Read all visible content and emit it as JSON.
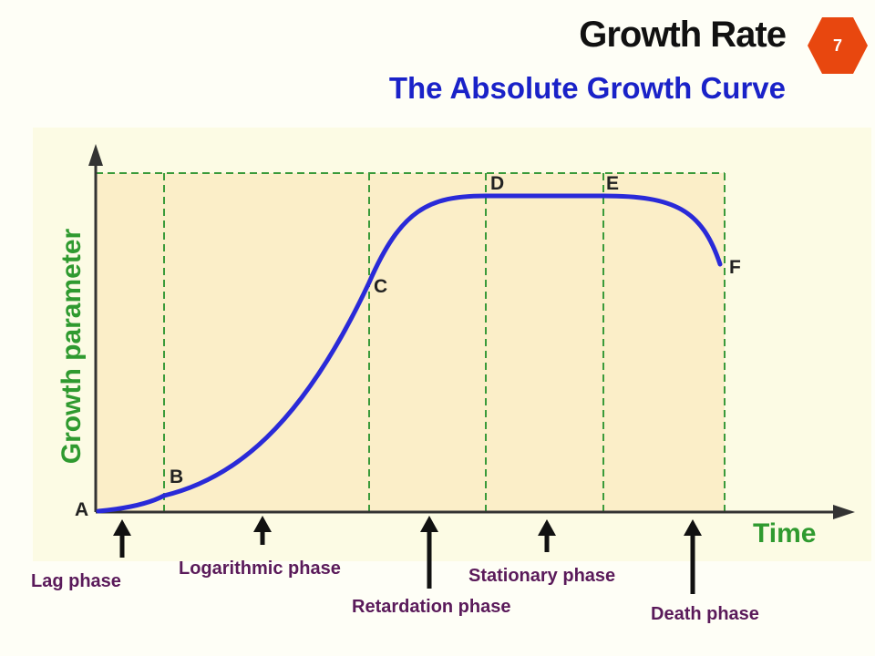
{
  "header": {
    "title": "Growth Rate",
    "subtitle": "The Absolute Growth Curve",
    "slide_number": "7",
    "badge_color": "#e8470f"
  },
  "diagram": {
    "y_axis_label": "Growth parameter",
    "x_axis_label": "Time",
    "curve_color": "#2a2ad8",
    "plot_background": "#fbeec8",
    "grid_color": "#3a9a3a",
    "points": [
      "A",
      "B",
      "C",
      "D",
      "E",
      "F"
    ],
    "phases": [
      "Lag phase",
      "Logarithmic phase",
      "Retardation phase",
      "Stationary phase",
      "Death phase"
    ]
  }
}
